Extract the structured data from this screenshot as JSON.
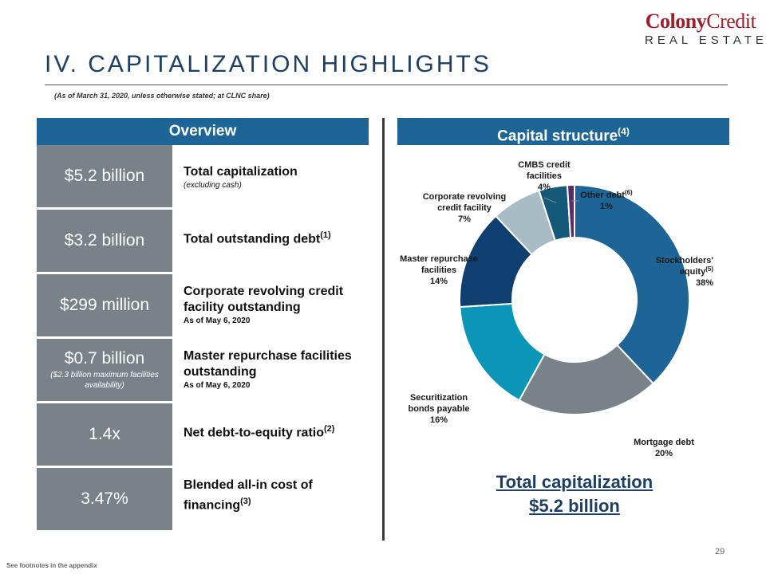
{
  "logo": {
    "line1a": "Colony",
    "line1b": "Credit",
    "line2": "REAL ESTATE"
  },
  "title": "IV. CAPITALIZATION HIGHLIGHTS",
  "subtitle": "(As of March 31, 2020, unless otherwise stated; at CLNC share)",
  "overview": {
    "header": "Overview",
    "rows": [
      {
        "value": "$5.2 billion",
        "note": "",
        "label": "Total capitalization",
        "sup": "",
        "sub": "(excluding cash)"
      },
      {
        "value": "$3.2 billion",
        "note": "",
        "label": "Total outstanding debt",
        "sup": "(1)",
        "sub": ""
      },
      {
        "value": "$299 million",
        "note": "",
        "label": "Corporate revolving credit facility outstanding",
        "sup": "",
        "sub": "As of May 6, 2020"
      },
      {
        "value": "$0.7 billion",
        "note": "($2.3 billion maximum facilities availability)",
        "label": "Master repurchase facilities outstanding",
        "sup": "",
        "sub": "As of May 6, 2020"
      },
      {
        "value": "1.4x",
        "note": "",
        "label": "Net debt-to-equity ratio",
        "sup": "(2)",
        "sub": ""
      },
      {
        "value": "3.47%",
        "note": "",
        "label": "Blended all-in cost of financing",
        "sup": "(3)",
        "sub": ""
      }
    ]
  },
  "capital": {
    "header": "Capital structure",
    "header_sup": "(4)"
  },
  "chart_data": {
    "type": "pie",
    "donut": true,
    "slices": [
      {
        "name": "Stockholders' equity",
        "name_sup": "(5)",
        "value": 38,
        "label": "38%",
        "color": "#1d6597"
      },
      {
        "name": "Mortgage debt",
        "name_sup": "",
        "value": 20,
        "label": "20%",
        "color": "#7a8289"
      },
      {
        "name": "Securitization bonds payable",
        "name_sup": "",
        "value": 16,
        "label": "16%",
        "color": "#0b96b8"
      },
      {
        "name": "Master repurchase facilities",
        "name_sup": "",
        "value": 14,
        "label": "14%",
        "color": "#0e3f70"
      },
      {
        "name": "Corporate revolving credit facility",
        "name_sup": "",
        "value": 7,
        "label": "7%",
        "color": "#a8bcc6"
      },
      {
        "name": "CMBS credit facilities",
        "name_sup": "",
        "value": 4,
        "label": "4%",
        "color": "#14597a"
      },
      {
        "name": "Other debt",
        "name_sup": "(6)",
        "value": 1,
        "label": "1%",
        "color": "#5a2a6a"
      }
    ],
    "total_label_line1": "Total capitalization",
    "total_label_line2": "$5.2 billion"
  },
  "page_number": "29",
  "footnote": "See footnotes in the appendix"
}
